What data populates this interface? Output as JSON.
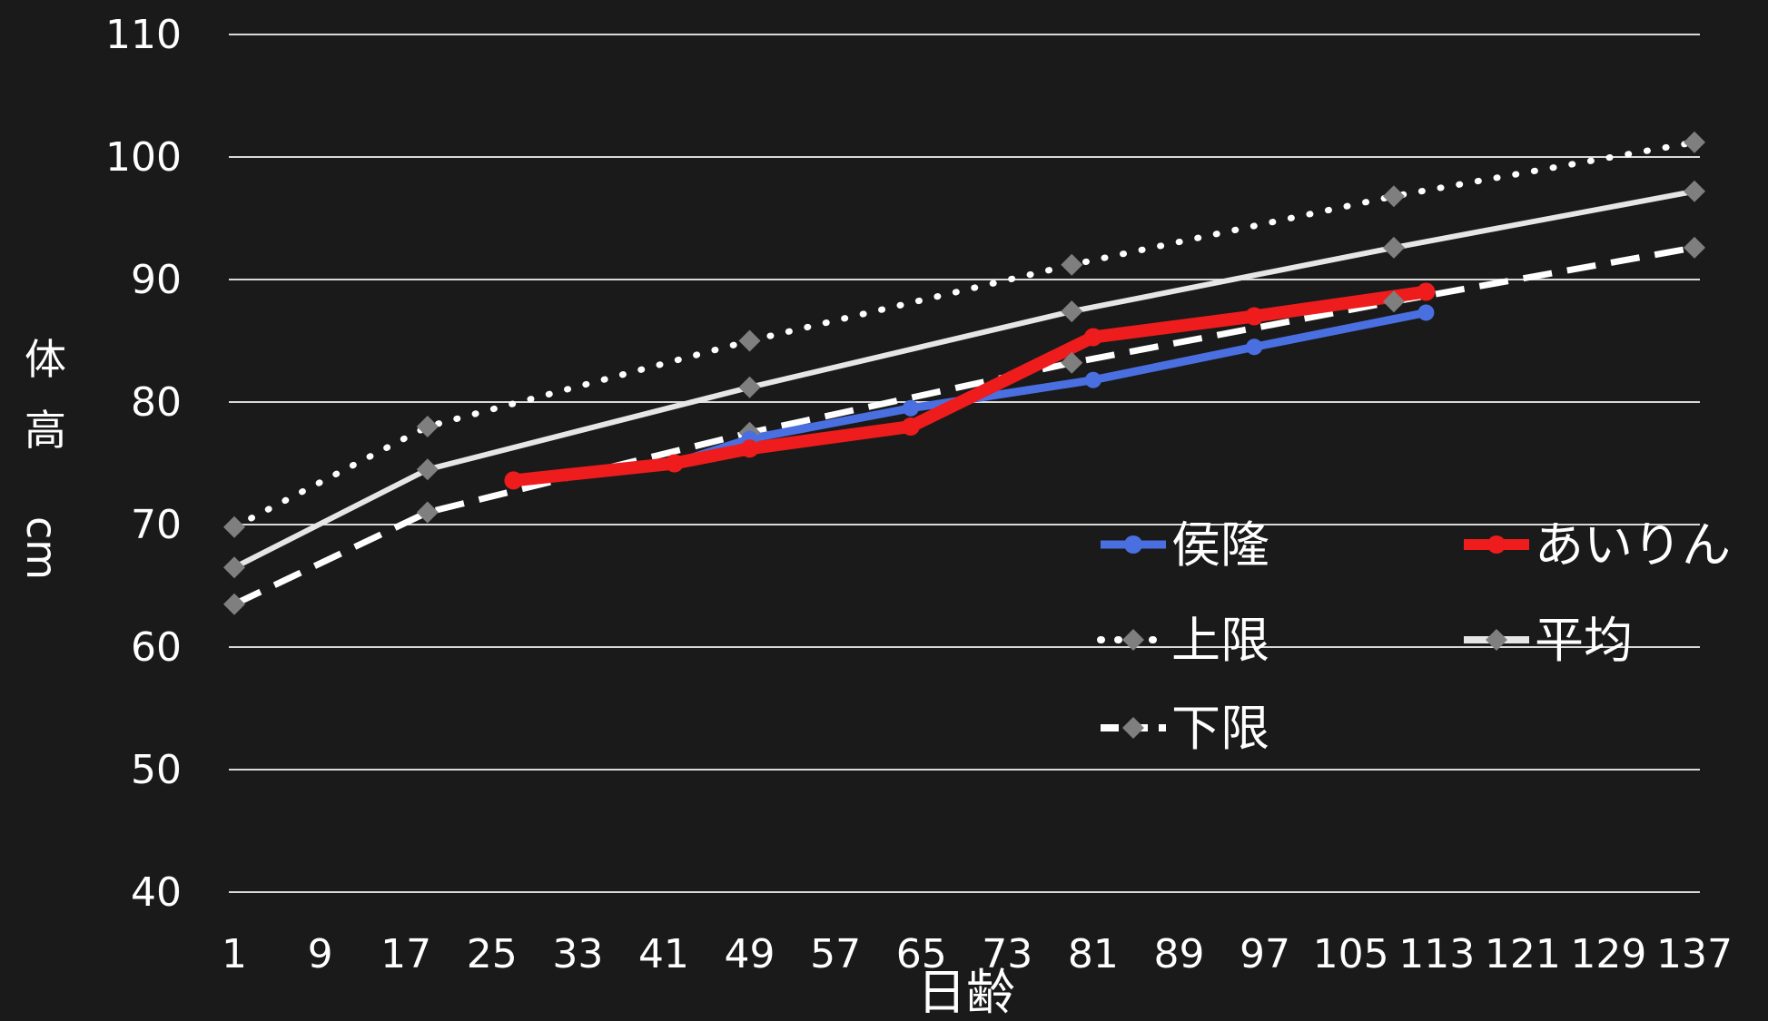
{
  "chart_data": {
    "type": "line",
    "title": "",
    "xlabel": "日齢",
    "ylabel": "体高 cm",
    "x_ticks": [
      "1",
      "9",
      "17",
      "25",
      "33",
      "41",
      "49",
      "57",
      "65",
      "73",
      "81",
      "89",
      "97",
      "105",
      "113",
      "121",
      "129",
      "137"
    ],
    "xlim": [
      1,
      137
    ],
    "ylim": [
      40,
      110
    ],
    "y_ticks": [
      40,
      50,
      60,
      70,
      80,
      90,
      100,
      110
    ],
    "grid": true,
    "legend_position": "inside-lower-right",
    "background": "#1a1a1a",
    "series": [
      {
        "name": "侯隆",
        "color": "#4a6fe0",
        "style": "solid",
        "marker": "circle",
        "x": [
          27,
          42,
          49,
          64,
          81,
          96,
          112
        ],
        "y": [
          73.6,
          75.0,
          77.0,
          79.5,
          81.8,
          84.5,
          87.3
        ]
      },
      {
        "name": "あいりん",
        "color": "#ee1c1c",
        "style": "solid",
        "marker": "circle",
        "x": [
          27,
          42,
          49,
          64,
          81,
          96,
          112
        ],
        "y": [
          73.6,
          75.0,
          76.2,
          78.0,
          85.3,
          87.0,
          89.0
        ]
      },
      {
        "name": "上限",
        "color": "#ffffff",
        "style": "dotted",
        "marker": "diamond",
        "x": [
          1,
          19,
          49,
          79,
          109,
          137
        ],
        "y": [
          69.8,
          78.0,
          85.0,
          91.2,
          96.8,
          101.2
        ]
      },
      {
        "name": "平均",
        "color": "#e6e6e6",
        "style": "solid",
        "marker": "diamond",
        "x": [
          1,
          19,
          49,
          79,
          109,
          137
        ],
        "y": [
          66.5,
          74.5,
          81.2,
          87.4,
          92.6,
          97.2
        ]
      },
      {
        "name": "下限",
        "color": "#ffffff",
        "style": "dashed",
        "marker": "diamond",
        "x": [
          1,
          19,
          49,
          79,
          109,
          137
        ],
        "y": [
          63.5,
          71.0,
          77.5,
          83.2,
          88.2,
          92.6
        ]
      }
    ]
  }
}
